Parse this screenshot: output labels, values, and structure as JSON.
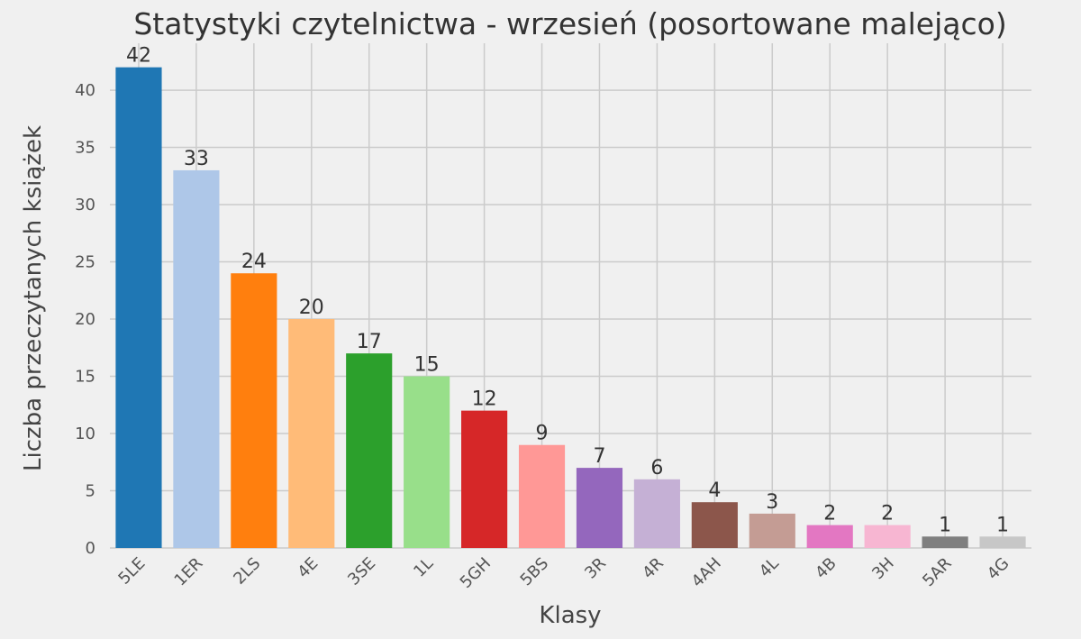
{
  "chart_data": {
    "type": "bar",
    "title": "Statystyki czytelnictwa - wrzesień (posortowane malejąco)",
    "xlabel": "Klasy",
    "ylabel": "Liczba przeczytanych książek",
    "categories": [
      "5LE",
      "1ER",
      "2LS",
      "4E",
      "3SE",
      "1L",
      "5GH",
      "5BS",
      "3R",
      "4R",
      "4AH",
      "4L",
      "4B",
      "3H",
      "5AR",
      "4G"
    ],
    "values": [
      42,
      33,
      24,
      20,
      17,
      15,
      12,
      9,
      7,
      6,
      4,
      3,
      2,
      2,
      1,
      1
    ],
    "colors": [
      "#1f77b4",
      "#aec7e8",
      "#ff7f0e",
      "#ffbb78",
      "#2ca02c",
      "#98df8a",
      "#d62728",
      "#ff9896",
      "#9467bd",
      "#c5b0d5",
      "#8c564b",
      "#c49c94",
      "#e377c2",
      "#f7b6d2",
      "#7f7f7f",
      "#c7c7c7"
    ],
    "yticks": [
      0,
      5,
      10,
      15,
      20,
      25,
      30,
      35,
      40
    ],
    "ylim": [
      0,
      44.1
    ],
    "grid": true,
    "data_labels": true
  }
}
